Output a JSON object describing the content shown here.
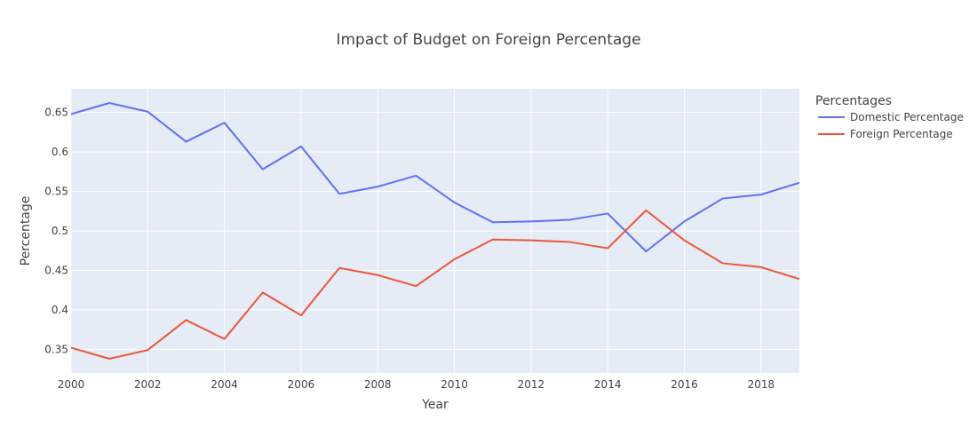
{
  "chart_data": {
    "type": "line",
    "title": "Impact of Budget on Foreign Percentage",
    "xlabel": "Year",
    "ylabel": "Percentage",
    "xlim": [
      2000,
      2019
    ],
    "ylim": [
      0.32,
      0.68
    ],
    "x_ticks": [
      2000,
      2002,
      2004,
      2006,
      2008,
      2010,
      2012,
      2014,
      2016,
      2018
    ],
    "y_ticks": [
      0.35,
      0.4,
      0.45,
      0.5,
      0.55,
      0.6,
      0.65
    ],
    "y_tick_labels": [
      "0.35",
      "0.4",
      "0.45",
      "0.5",
      "0.55",
      "0.6",
      "0.65"
    ],
    "grid": true,
    "legend": {
      "title": "Percentages",
      "placement": "right"
    },
    "x": [
      2000,
      2001,
      2002,
      2003,
      2004,
      2005,
      2006,
      2007,
      2008,
      2009,
      2010,
      2011,
      2012,
      2013,
      2014,
      2015,
      2016,
      2017,
      2018,
      2019
    ],
    "series": [
      {
        "name": "Domestic Percentage",
        "color": "#636efa",
        "values": [
          0.648,
          0.662,
          0.651,
          0.613,
          0.637,
          0.578,
          0.607,
          0.547,
          0.556,
          0.57,
          0.536,
          0.511,
          0.512,
          0.514,
          0.522,
          0.474,
          0.512,
          0.541,
          0.546,
          0.561
        ]
      },
      {
        "name": "Foreign Percentage",
        "color": "#ef553b",
        "values": [
          0.352,
          0.338,
          0.349,
          0.387,
          0.363,
          0.422,
          0.393,
          0.453,
          0.444,
          0.43,
          0.464,
          0.489,
          0.488,
          0.486,
          0.478,
          0.526,
          0.488,
          0.459,
          0.454,
          0.439
        ]
      }
    ]
  },
  "colors": {
    "plot_background": "#e5ecf6",
    "grid": "#ffffff",
    "text": "#444444"
  }
}
